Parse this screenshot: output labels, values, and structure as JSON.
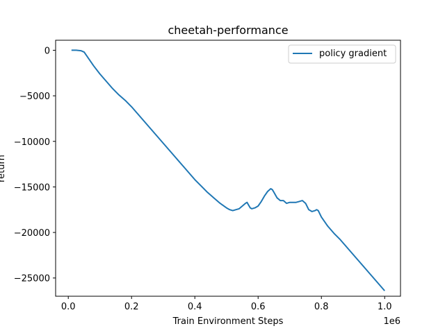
{
  "chart_data": {
    "type": "line",
    "title": "cheetah-performance",
    "xlabel": "Train Environment Steps",
    "ylabel": "return",
    "x_offset_label": "1e6",
    "xlim": [
      -40000,
      1050000
    ],
    "ylim": [
      -27000,
      1100
    ],
    "x_ticks": [
      0,
      200000,
      400000,
      600000,
      800000,
      1000000
    ],
    "x_tick_labels": [
      "0.0",
      "0.2",
      "0.4",
      "0.6",
      "0.8",
      "1.0"
    ],
    "y_ticks": [
      0,
      -5000,
      -10000,
      -15000,
      -20000,
      -25000
    ],
    "y_tick_labels": [
      "0",
      "−5000",
      "−10000",
      "−15000",
      "−20000",
      "−25000"
    ],
    "grid": false,
    "legend_position": "top-right",
    "series": [
      {
        "name": "policy gradient",
        "color": "#1f77b4",
        "x": [
          10000,
          25000,
          40000,
          50000,
          60000,
          80000,
          100000,
          120000,
          140000,
          160000,
          180000,
          200000,
          220000,
          240000,
          260000,
          280000,
          300000,
          320000,
          340000,
          360000,
          380000,
          400000,
          420000,
          440000,
          460000,
          480000,
          500000,
          510000,
          520000,
          530000,
          540000,
          550000,
          560000,
          565000,
          570000,
          575000,
          580000,
          590000,
          600000,
          610000,
          620000,
          630000,
          640000,
          645000,
          650000,
          660000,
          670000,
          680000,
          690000,
          700000,
          710000,
          720000,
          730000,
          740000,
          750000,
          760000,
          770000,
          780000,
          785000,
          790000,
          800000,
          820000,
          840000,
          860000,
          880000,
          900000,
          920000,
          940000,
          960000,
          980000,
          1000000
        ],
        "y": [
          0,
          0,
          -50,
          -200,
          -700,
          -1700,
          -2600,
          -3400,
          -4200,
          -4900,
          -5500,
          -6200,
          -7000,
          -7800,
          -8600,
          -9400,
          -10200,
          -11000,
          -11800,
          -12600,
          -13400,
          -14200,
          -14900,
          -15600,
          -16200,
          -16800,
          -17300,
          -17500,
          -17600,
          -17500,
          -17400,
          -17100,
          -16800,
          -16700,
          -17000,
          -17300,
          -17400,
          -17300,
          -17100,
          -16600,
          -16000,
          -15500,
          -15200,
          -15300,
          -15600,
          -16200,
          -16500,
          -16500,
          -16800,
          -16700,
          -16700,
          -16700,
          -16600,
          -16500,
          -16800,
          -17500,
          -17700,
          -17600,
          -17500,
          -17600,
          -18300,
          -19300,
          -20100,
          -20800,
          -21600,
          -22400,
          -23200,
          -24000,
          -24800,
          -25600,
          -26400
        ]
      }
    ]
  }
}
